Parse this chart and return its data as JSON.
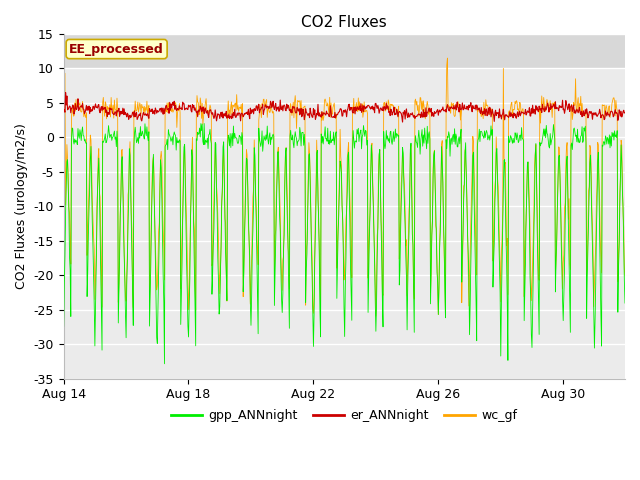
{
  "title": "CO2 Fluxes",
  "ylabel": "CO2 Fluxes (urology/m2/s)",
  "ylim": [
    -35,
    15
  ],
  "fig_bg_color": "#ffffff",
  "plot_bg_color": "#ebebeb",
  "top_strip_color": "#d8d8d8",
  "gpp_color": "#00ee00",
  "er_color": "#cc0000",
  "wc_color": "#ffa500",
  "annotation_text": "EE_processed",
  "annotation_color": "#990000",
  "annotation_bg": "#ffffcc",
  "annotation_border": "#ccaa00",
  "legend_labels": [
    "gpp_ANNnight",
    "er_ANNnight",
    "wc_gf"
  ],
  "n_days": 18,
  "start_day": 14,
  "points_per_day": 48,
  "title_fontsize": 11,
  "label_fontsize": 9,
  "tick_fontsize": 9,
  "grid_color": "#ffffff",
  "xtick_vals": [
    14,
    18,
    22,
    26,
    30
  ],
  "xtick_labels": [
    "Aug 14",
    "Aug 18",
    "Aug 22",
    "Aug 26",
    "Aug 30"
  ],
  "ytick_vals": [
    -35,
    -30,
    -25,
    -20,
    -15,
    -10,
    -5,
    0,
    5,
    10,
    15
  ]
}
